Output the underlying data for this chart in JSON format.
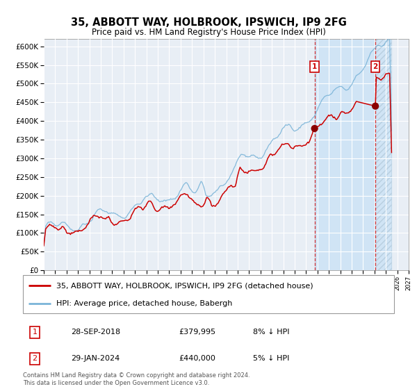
{
  "title": "35, ABBOTT WAY, HOLBROOK, IPSWICH, IP9 2FG",
  "subtitle": "Price paid vs. HM Land Registry's House Price Index (HPI)",
  "ylim": [
    0,
    620000
  ],
  "yticks": [
    0,
    50000,
    100000,
    150000,
    200000,
    250000,
    300000,
    350000,
    400000,
    450000,
    500000,
    550000,
    600000
  ],
  "ytick_labels": [
    "£0",
    "£50K",
    "£100K",
    "£150K",
    "£200K",
    "£250K",
    "£300K",
    "£350K",
    "£400K",
    "£450K",
    "£500K",
    "£550K",
    "£600K"
  ],
  "x_start_year": 1995,
  "x_end_year": 2027,
  "hpi_color": "#7ab4d8",
  "price_color": "#cc0000",
  "point1_year": 2018.75,
  "point1_value": 379995,
  "point1_label": "28-SEP-2018",
  "point1_price": "£379,995",
  "point1_pct": "8% ↓ HPI",
  "point2_year": 2024.08,
  "point2_value": 440000,
  "point2_label": "29-JAN-2024",
  "point2_price": "£440,000",
  "point2_pct": "5% ↓ HPI",
  "bg_main_color": "#e8eef5",
  "bg_highlight_color": "#d0e4f5",
  "legend_line1": "35, ABBOTT WAY, HOLBROOK, IPSWICH, IP9 2FG (detached house)",
  "legend_line2": "HPI: Average price, detached house, Babergh",
  "footer1": "Contains HM Land Registry data © Crown copyright and database right 2024.",
  "footer2": "This data is licensed under the Open Government Licence v3.0.",
  "title_fontsize": 10.5,
  "subtitle_fontsize": 8.5,
  "tick_fontsize": 7.5,
  "legend_fontsize": 8
}
